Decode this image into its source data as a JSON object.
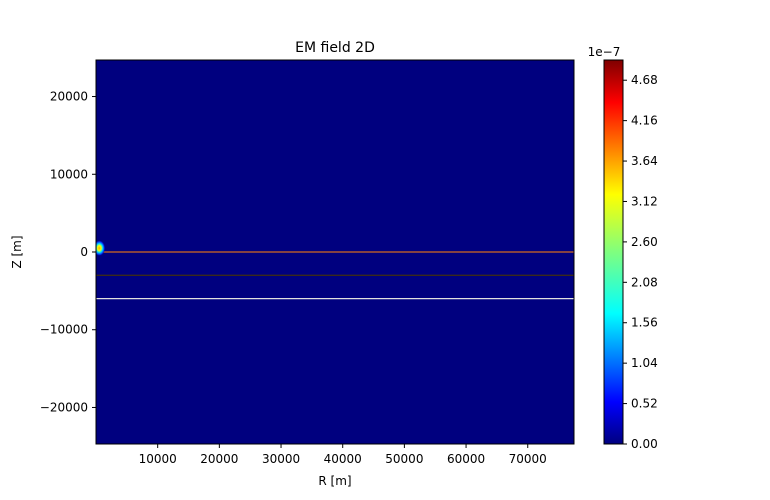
{
  "chart_data": {
    "type": "heatmap",
    "title": "EM field 2D",
    "xlabel": "R [m]",
    "ylabel": "Z [m]",
    "xlim": [
      0,
      77500
    ],
    "ylim": [
      -24700,
      24700
    ],
    "x_ticks": [
      10000,
      20000,
      30000,
      40000,
      50000,
      60000,
      70000
    ],
    "x_tick_labels": [
      "10000",
      "20000",
      "30000",
      "40000",
      "50000",
      "60000",
      "70000"
    ],
    "y_ticks": [
      20000,
      10000,
      0,
      -10000,
      -20000
    ],
    "y_tick_labels": [
      "20000",
      "10000",
      "0",
      "−10000",
      "−20000"
    ],
    "colormap": "jet",
    "background_color": "#00007f",
    "colorbar": {
      "multiplier": "1e−7",
      "min": 0.0,
      "max": 4.94,
      "ticks": [
        0.0,
        0.52,
        1.04,
        1.56,
        2.08,
        2.6,
        3.12,
        3.64,
        4.16,
        4.68
      ],
      "tick_labels": [
        "0.00",
        "0.52",
        "1.04",
        "1.56",
        "2.08",
        "2.60",
        "3.12",
        "3.64",
        "4.16",
        "4.68"
      ]
    },
    "source_hotspot": {
      "r": 300,
      "z": 500,
      "peak_value": 4.94
    },
    "layer_boundaries": [
      {
        "z": 0,
        "color": "#d2691e"
      },
      {
        "z": -3000,
        "color": "#3a2a1a"
      },
      {
        "z": -6000,
        "color": "#e0e0e0"
      }
    ],
    "grid": false
  }
}
